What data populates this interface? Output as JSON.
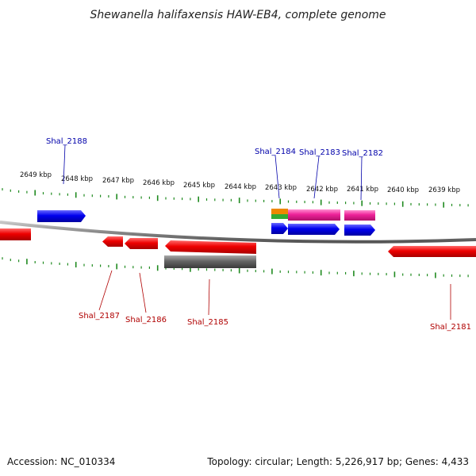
{
  "title": "Shewanella halifaxensis HAW-EB4, complete genome",
  "footer": {
    "accession": "Accession: NC_010334",
    "summary": "Topology: circular; Length: 5,226,917 bp; Genes: 4,433"
  },
  "colors": {
    "backbone": "#8a8a8a",
    "tick": "#1f8a1f",
    "forward_label": "#0000aa",
    "reverse_label": "#b00000",
    "gene_red": "#ee0000",
    "gene_blue": "#0000ee",
    "gene_pink": "#ee2299",
    "gene_gray": "#666666",
    "gene_orange": "#ee8800",
    "gene_green": "#33aa33"
  },
  "kbp_ticks": [
    "2649 kbp",
    "2648 kbp",
    "2647 kbp",
    "2646 kbp",
    "2645 kbp",
    "2644 kbp",
    "2643 kbp",
    "2642 kbp",
    "2641 kbp",
    "2640 kbp",
    "2639 kbp"
  ],
  "genes_forward": [
    {
      "label": "Shal_2188",
      "color": "gene_blue"
    },
    {
      "label": "Shal_2184",
      "color": "gene_blue"
    },
    {
      "label": "Shal_2183",
      "color": "gene_blue"
    },
    {
      "label": "Shal_2182",
      "color": "gene_blue"
    }
  ],
  "genes_reverse": [
    {
      "label": "Shal_2187",
      "color": "gene_red"
    },
    {
      "label": "Shal_2186",
      "color": "gene_red"
    },
    {
      "label": "Shal_2185",
      "color": "gene_red"
    },
    {
      "label": "Shal_2181",
      "color": "gene_red"
    }
  ]
}
